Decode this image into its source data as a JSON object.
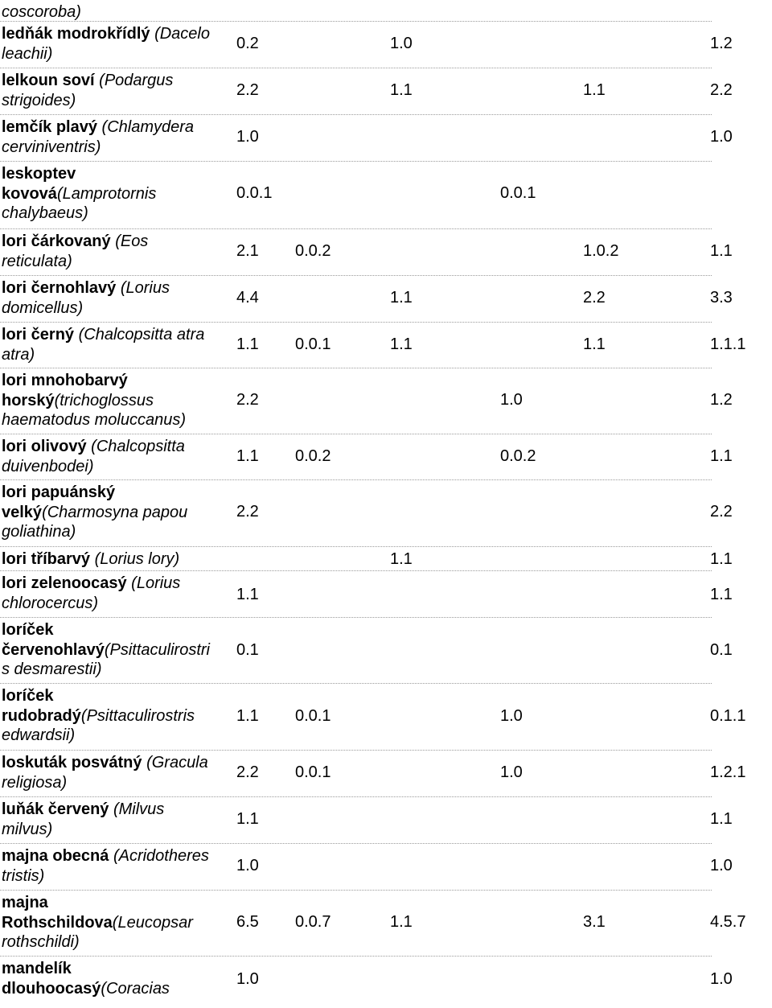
{
  "rows": [
    {
      "name_bold": "",
      "name_italic": "coscoroba)",
      "vals": [
        "",
        "",
        "",
        "",
        "",
        ""
      ]
    },
    {
      "name_bold": "ledňák modrokřídlý ",
      "name_italic": "(Dacelo leachii)",
      "vals": [
        "0.2",
        "",
        "1.0",
        "",
        "",
        "1.2"
      ]
    },
    {
      "name_bold": "lelkoun soví ",
      "name_italic": "(Podargus strigoides)",
      "vals": [
        "2.2",
        "",
        "1.1",
        "",
        "1.1",
        "2.2"
      ]
    },
    {
      "name_bold": "lemčík plavý ",
      "name_italic": "(Chlamydera cerviniventris)",
      "vals": [
        "1.0",
        "",
        "",
        "",
        "",
        "1.0"
      ]
    },
    {
      "name_bold": "leskoptev kovová",
      "name_italic": "(Lamprotornis chalybaeus)",
      "vals": [
        "0.0.1",
        "",
        "",
        "0.0.1",
        "",
        ""
      ]
    },
    {
      "name_bold": "lori čárkovaný ",
      "name_italic": "(Eos reticulata)",
      "vals": [
        "2.1",
        "0.0.2",
        "",
        "",
        "1.0.2",
        "1.1"
      ]
    },
    {
      "name_bold": "lori černohlavý ",
      "name_italic": "(Lorius domicellus)",
      "vals": [
        "4.4",
        "",
        "1.1",
        "",
        "2.2",
        "3.3"
      ]
    },
    {
      "name_bold": "lori černý ",
      "name_italic": "(Chalcopsitta atra atra)",
      "vals": [
        "1.1",
        "0.0.1",
        "1.1",
        "",
        "1.1",
        "1.1.1"
      ]
    },
    {
      "name_bold": "lori mnohobarvý horský",
      "name_italic": "(trichoglossus haematodus moluccanus)",
      "vals": [
        "2.2",
        "",
        "",
        "1.0",
        "",
        "1.2"
      ]
    },
    {
      "name_bold": "lori olivový ",
      "name_italic": "(Chalcopsitta duivenbodei)",
      "vals": [
        "1.1",
        "0.0.2",
        "",
        "0.0.2",
        "",
        "1.1"
      ]
    },
    {
      "name_bold": "lori papuánský velký",
      "name_italic": "(Charmosyna papou goliathina)",
      "vals": [
        "2.2",
        "",
        "",
        "",
        "",
        "2.2"
      ]
    },
    {
      "name_bold": "lori tříbarvý ",
      "name_italic": "(Lorius lory)",
      "vals": [
        "",
        "",
        "1.1",
        "",
        "",
        "1.1"
      ]
    },
    {
      "name_bold": "lori zelenoocasý ",
      "name_italic": "(Lorius chlorocercus)",
      "vals": [
        "1.1",
        "",
        "",
        "",
        "",
        "1.1"
      ]
    },
    {
      "name_bold": "loríček červenohlavý",
      "name_italic": "(Psittaculirostris desmarestii)",
      "vals": [
        "0.1",
        "",
        "",
        "",
        "",
        "0.1"
      ]
    },
    {
      "name_bold": "loríček rudobradý",
      "name_italic": "(Psittaculirostris edwardsii)",
      "vals": [
        "1.1",
        "0.0.1",
        "",
        "1.0",
        "",
        "0.1.1"
      ]
    },
    {
      "name_bold": "loskuták posvátný ",
      "name_italic": "(Gracula religiosa)",
      "vals": [
        "2.2",
        "0.0.1",
        "",
        "1.0",
        "",
        "1.2.1"
      ]
    },
    {
      "name_bold": "luňák červený ",
      "name_italic": "(Milvus milvus)",
      "vals": [
        "1.1",
        "",
        "",
        "",
        "",
        "1.1"
      ]
    },
    {
      "name_bold": "majna obecná ",
      "name_italic": "(Acridotheres tristis)",
      "vals": [
        "1.0",
        "",
        "",
        "",
        "",
        "1.0"
      ]
    },
    {
      "name_bold": "majna Rothschildova",
      "name_italic": "(Leucopsar rothschildi)",
      "vals": [
        "6.5",
        "0.0.7",
        "1.1",
        "",
        "3.1",
        "4.5.7"
      ]
    },
    {
      "name_bold": "mandelík dlouhoocasý",
      "name_italic": "(Coracias",
      "vals": [
        "1.0",
        "",
        "",
        "",
        "",
        "1.0"
      ]
    }
  ]
}
